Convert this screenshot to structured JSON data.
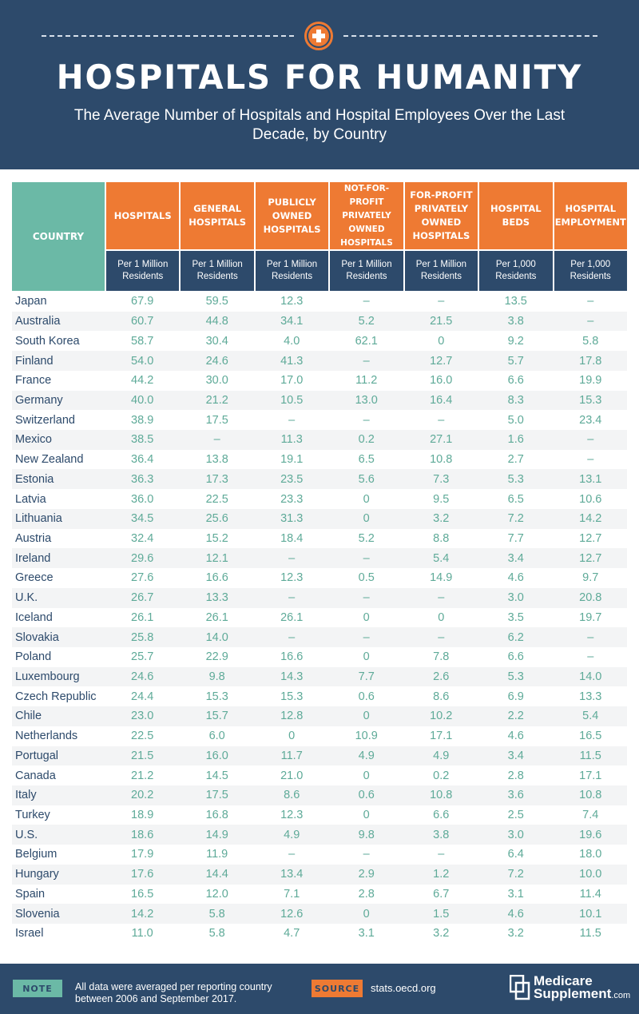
{
  "header": {
    "title": "HOSPITALS FOR HUMANITY",
    "subtitle": "The Average Number of Hospitals and Hospital Employees Over the Last Decade, by Country"
  },
  "chart_data": {
    "type": "table",
    "title": "HOSPITALS FOR HUMANITY",
    "subtitle": "The Average Number of Hospitals and Hospital Employees Over the Last Decade, by Country",
    "country_header": "COUNTRY",
    "columns": [
      {
        "name": "HOSPITALS",
        "unit": "Per 1 Million Residents"
      },
      {
        "name": "GENERAL HOSPITALS",
        "unit": "Per 1 Million Residents"
      },
      {
        "name": "PUBLICLY OWNED HOSPITALS",
        "unit": "Per 1 Million Residents"
      },
      {
        "name": "NOT-FOR-PROFIT PRIVATELY OWNED HOSPITALS",
        "unit": "Per 1 Million Residents"
      },
      {
        "name": "FOR-PROFIT PRIVATELY OWNED HOSPITALS",
        "unit": "Per 1 Million Residents"
      },
      {
        "name": "HOSPITAL BEDS",
        "unit": "Per 1,000 Residents"
      },
      {
        "name": "HOSPITAL EMPLOYMENT",
        "unit": "Per 1,000 Residents"
      }
    ],
    "rows": [
      {
        "country": "Japan",
        "values": [
          "67.9",
          "59.5",
          "12.3",
          "–",
          "–",
          "13.5",
          "–"
        ]
      },
      {
        "country": "Australia",
        "values": [
          "60.7",
          "44.8",
          "34.1",
          "5.2",
          "21.5",
          "3.8",
          "–"
        ]
      },
      {
        "country": "South Korea",
        "values": [
          "58.7",
          "30.4",
          "4.0",
          "62.1",
          "0",
          "9.2",
          "5.8"
        ]
      },
      {
        "country": "Finland",
        "values": [
          "54.0",
          "24.6",
          "41.3",
          "–",
          "12.7",
          "5.7",
          "17.8"
        ]
      },
      {
        "country": "France",
        "values": [
          "44.2",
          "30.0",
          "17.0",
          "11.2",
          "16.0",
          "6.6",
          "19.9"
        ]
      },
      {
        "country": "Germany",
        "values": [
          "40.0",
          "21.2",
          "10.5",
          "13.0",
          "16.4",
          "8.3",
          "15.3"
        ]
      },
      {
        "country": "Switzerland",
        "values": [
          "38.9",
          "17.5",
          "–",
          "–",
          "–",
          "5.0",
          "23.4"
        ]
      },
      {
        "country": "Mexico",
        "values": [
          "38.5",
          "–",
          "11.3",
          "0.2",
          "27.1",
          "1.6",
          "–"
        ]
      },
      {
        "country": "New Zealand",
        "values": [
          "36.4",
          "13.8",
          "19.1",
          "6.5",
          "10.8",
          "2.7",
          "–"
        ]
      },
      {
        "country": "Estonia",
        "values": [
          "36.3",
          "17.3",
          "23.5",
          "5.6",
          "7.3",
          "5.3",
          "13.1"
        ]
      },
      {
        "country": "Latvia",
        "values": [
          "36.0",
          "22.5",
          "23.3",
          "0",
          "9.5",
          "6.5",
          "10.6"
        ]
      },
      {
        "country": "Lithuania",
        "values": [
          "34.5",
          "25.6",
          "31.3",
          "0",
          "3.2",
          "7.2",
          "14.2"
        ]
      },
      {
        "country": "Austria",
        "values": [
          "32.4",
          "15.2",
          "18.4",
          "5.2",
          "8.8",
          "7.7",
          "12.7"
        ]
      },
      {
        "country": "Ireland",
        "values": [
          "29.6",
          "12.1",
          "–",
          "–",
          "5.4",
          "3.4",
          "12.7"
        ]
      },
      {
        "country": "Greece",
        "values": [
          "27.6",
          "16.6",
          "12.3",
          "0.5",
          "14.9",
          "4.6",
          "9.7"
        ]
      },
      {
        "country": "U.K.",
        "values": [
          "26.7",
          "13.3",
          "–",
          "–",
          "–",
          "3.0",
          "20.8"
        ]
      },
      {
        "country": "Iceland",
        "values": [
          "26.1",
          "26.1",
          "26.1",
          "0",
          "0",
          "3.5",
          "19.7"
        ]
      },
      {
        "country": "Slovakia",
        "values": [
          "25.8",
          "14.0",
          "–",
          "–",
          "–",
          "6.2",
          "–"
        ]
      },
      {
        "country": "Poland",
        "values": [
          "25.7",
          "22.9",
          "16.6",
          "0",
          "7.8",
          "6.6",
          "–"
        ]
      },
      {
        "country": "Luxembourg",
        "values": [
          "24.6",
          "9.8",
          "14.3",
          "7.7",
          "2.6",
          "5.3",
          "14.0"
        ]
      },
      {
        "country": "Czech Republic",
        "values": [
          "24.4",
          "15.3",
          "15.3",
          "0.6",
          "8.6",
          "6.9",
          "13.3"
        ]
      },
      {
        "country": "Chile",
        "values": [
          "23.0",
          "15.7",
          "12.8",
          "0",
          "10.2",
          "2.2",
          "5.4"
        ]
      },
      {
        "country": "Netherlands",
        "values": [
          "22.5",
          "6.0",
          "0",
          "10.9",
          "17.1",
          "4.6",
          "16.5"
        ]
      },
      {
        "country": "Portugal",
        "values": [
          "21.5",
          "16.0",
          "11.7",
          "4.9",
          "4.9",
          "3.4",
          "11.5"
        ]
      },
      {
        "country": "Canada",
        "values": [
          "21.2",
          "14.5",
          "21.0",
          "0",
          "0.2",
          "2.8",
          "17.1"
        ]
      },
      {
        "country": "Italy",
        "values": [
          "20.2",
          "17.5",
          "8.6",
          "0.6",
          "10.8",
          "3.6",
          "10.8"
        ]
      },
      {
        "country": "Turkey",
        "values": [
          "18.9",
          "16.8",
          "12.3",
          "0",
          "6.6",
          "2.5",
          "7.4"
        ]
      },
      {
        "country": "U.S.",
        "values": [
          "18.6",
          "14.9",
          "4.9",
          "9.8",
          "3.8",
          "3.0",
          "19.6"
        ]
      },
      {
        "country": "Belgium",
        "values": [
          "17.9",
          "11.9",
          "–",
          "–",
          "–",
          "6.4",
          "18.0"
        ]
      },
      {
        "country": "Hungary",
        "values": [
          "17.6",
          "14.4",
          "13.4",
          "2.9",
          "1.2",
          "7.2",
          "10.0"
        ]
      },
      {
        "country": "Spain",
        "values": [
          "16.5",
          "12.0",
          "7.1",
          "2.8",
          "6.7",
          "3.1",
          "11.4"
        ]
      },
      {
        "country": "Slovenia",
        "values": [
          "14.2",
          "5.8",
          "12.6",
          "0",
          "1.5",
          "4.6",
          "10.1"
        ]
      },
      {
        "country": "Israel",
        "values": [
          "11.0",
          "5.8",
          "4.7",
          "3.1",
          "3.2",
          "3.2",
          "11.5"
        ]
      }
    ]
  },
  "footer": {
    "note_label": "NOTE",
    "note_text": "All data were averaged per reporting country between 2006 and September 2017.",
    "source_label": "SOURCE",
    "source_text": "stats.oecd.org",
    "logo_line1": "Medicare",
    "logo_line2": "Supplement",
    "logo_suffix": ".com"
  },
  "colors": {
    "navy": "#2d4a6b",
    "orange": "#ee7a33",
    "teal": "#6bb9a6",
    "value_text": "#5eaa98"
  },
  "icons": [
    "medical-cross-icon",
    "medicare-logo-icon"
  ]
}
